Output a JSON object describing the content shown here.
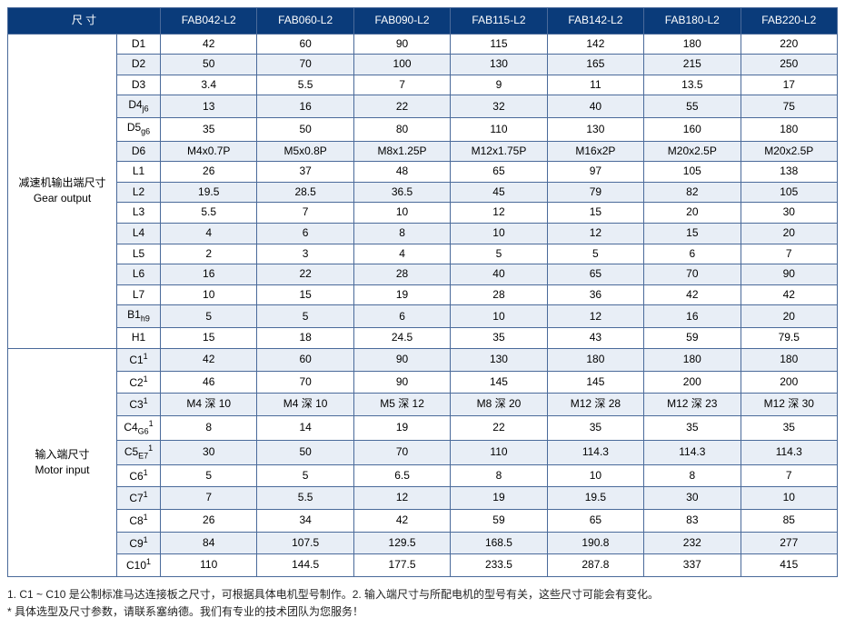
{
  "header": {
    "dim_label": "尺 寸",
    "models": [
      "FAB042-L2",
      "FAB060-L2",
      "FAB090-L2",
      "FAB115-L2",
      "FAB142-L2",
      "FAB180-L2",
      "FAB220-L2"
    ]
  },
  "groups": [
    {
      "label_cn": "减速机输出端尺寸",
      "label_en": "Gear output",
      "rows": [
        {
          "param": "D1",
          "vals": [
            "42",
            "60",
            "90",
            "115",
            "142",
            "180",
            "220"
          ]
        },
        {
          "param": "D2",
          "vals": [
            "50",
            "70",
            "100",
            "130",
            "165",
            "215",
            "250"
          ]
        },
        {
          "param": "D3",
          "vals": [
            "3.4",
            "5.5",
            "7",
            "9",
            "11",
            "13.5",
            "17"
          ]
        },
        {
          "param": "D4",
          "sub": "j6",
          "vals": [
            "13",
            "16",
            "22",
            "32",
            "40",
            "55",
            "75"
          ]
        },
        {
          "param": "D5",
          "sub": "g6",
          "vals": [
            "35",
            "50",
            "80",
            "110",
            "130",
            "160",
            "180"
          ]
        },
        {
          "param": "D6",
          "vals": [
            "M4x0.7P",
            "M5x0.8P",
            "M8x1.25P",
            "M12x1.75P",
            "M16x2P",
            "M20x2.5P",
            "M20x2.5P"
          ]
        },
        {
          "param": "L1",
          "vals": [
            "26",
            "37",
            "48",
            "65",
            "97",
            "105",
            "138"
          ]
        },
        {
          "param": "L2",
          "vals": [
            "19.5",
            "28.5",
            "36.5",
            "45",
            "79",
            "82",
            "105"
          ]
        },
        {
          "param": "L3",
          "vals": [
            "5.5",
            "7",
            "10",
            "12",
            "15",
            "20",
            "30"
          ]
        },
        {
          "param": "L4",
          "vals": [
            "4",
            "6",
            "8",
            "10",
            "12",
            "15",
            "20"
          ]
        },
        {
          "param": "L5",
          "vals": [
            "2",
            "3",
            "4",
            "5",
            "5",
            "6",
            "7"
          ]
        },
        {
          "param": "L6",
          "vals": [
            "16",
            "22",
            "28",
            "40",
            "65",
            "70",
            "90"
          ]
        },
        {
          "param": "L7",
          "vals": [
            "10",
            "15",
            "19",
            "28",
            "36",
            "42",
            "42"
          ]
        },
        {
          "param": "B1",
          "sub": "h9",
          "vals": [
            "5",
            "5",
            "6",
            "10",
            "12",
            "16",
            "20"
          ]
        },
        {
          "param": "H1",
          "vals": [
            "15",
            "18",
            "24.5",
            "35",
            "43",
            "59",
            "79.5"
          ]
        }
      ]
    },
    {
      "label_cn": "输入端尺寸",
      "label_en": "Motor input",
      "rows": [
        {
          "param": "C1",
          "sup": "1",
          "vals": [
            "42",
            "60",
            "90",
            "130",
            "180",
            "180",
            "180"
          ]
        },
        {
          "param": "C2",
          "sup": "1",
          "vals": [
            "46",
            "70",
            "90",
            "145",
            "145",
            "200",
            "200"
          ]
        },
        {
          "param": "C3",
          "sup": "1",
          "vals": [
            "M4 深 10",
            "M4 深 10",
            "M5 深 12",
            "M8 深 20",
            "M12 深 28",
            "M12 深 23",
            "M12 深 30"
          ]
        },
        {
          "param": "C4",
          "sub": "G6",
          "sup": "1",
          "vals": [
            "8",
            "14",
            "19",
            "22",
            "35",
            "35",
            "35"
          ]
        },
        {
          "param": "C5",
          "sub": "E7",
          "sup": "1",
          "vals": [
            "30",
            "50",
            "70",
            "110",
            "114.3",
            "114.3",
            "114.3"
          ]
        },
        {
          "param": "C6",
          "sup": "1",
          "vals": [
            "5",
            "5",
            "6.5",
            "8",
            "10",
            "8",
            "7"
          ]
        },
        {
          "param": "C7",
          "sup": "1",
          "vals": [
            "7",
            "5.5",
            "12",
            "19",
            "19.5",
            "30",
            "10"
          ]
        },
        {
          "param": "C8",
          "sup": "1",
          "vals": [
            "26",
            "34",
            "42",
            "59",
            "65",
            "83",
            "85"
          ]
        },
        {
          "param": "C9",
          "sup": "1",
          "vals": [
            "84",
            "107.5",
            "129.5",
            "168.5",
            "190.8",
            "232",
            "277"
          ]
        },
        {
          "param": "C10",
          "sup": "1",
          "vals": [
            "110",
            "144.5",
            "177.5",
            "233.5",
            "287.8",
            "337",
            "415"
          ]
        }
      ]
    }
  ],
  "footnotes": [
    "1. C1 ~ C10 是公制标准马达连接板之尺寸，可根据具体电机型号制作。2. 输入端尺寸与所配电机的型号有关，这些尺寸可能会有变化。",
    "* 具体选型及尺寸参数，请联系塞纳德。我们有专业的技术团队为您服务！"
  ],
  "colors": {
    "header_bg": "#0a3b7a",
    "header_text": "#ffffff",
    "border": "#4a6a9a",
    "row_alt": "#e8eef6",
    "row_base": "#ffffff"
  },
  "col_widths": {
    "group": "120px",
    "param": "48px",
    "data": "auto"
  }
}
